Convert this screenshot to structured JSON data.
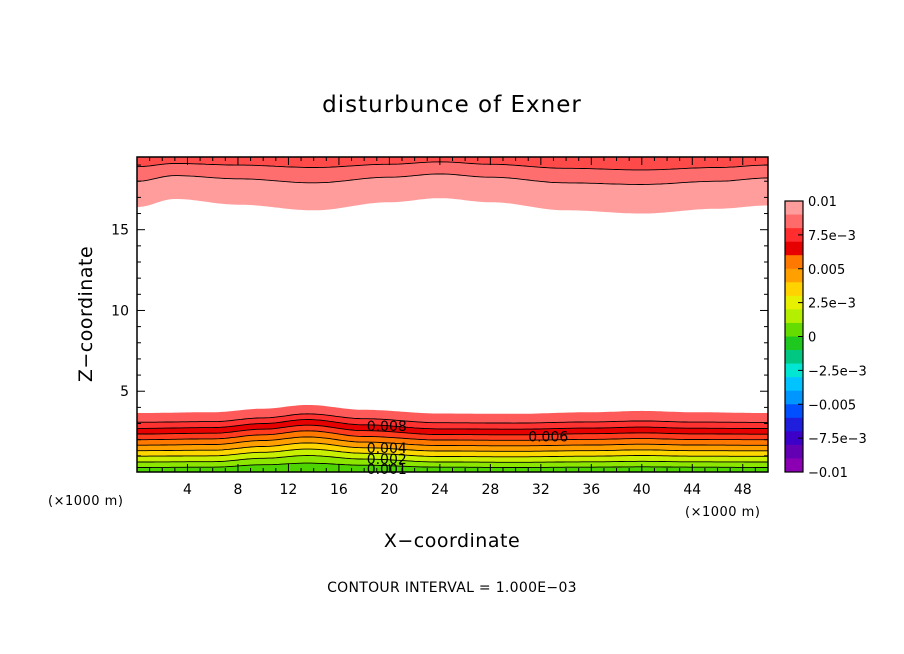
{
  "chart_data": {
    "type": "contour",
    "title": "disturbunce of Exner",
    "xlabel": "X−coordinate",
    "ylabel": "Z−coordinate",
    "x_unit_left": "(×1000 m)",
    "x_unit_right": "(×1000 m)",
    "xlim": [
      0,
      50
    ],
    "ylim": [
      0,
      19.5
    ],
    "x_ticks": [
      4,
      8,
      12,
      16,
      20,
      24,
      28,
      32,
      36,
      40,
      44,
      48
    ],
    "x_tick_labels": [
      "4",
      "8",
      "12",
      "16",
      "20",
      "24",
      "28",
      "32",
      "36",
      "40",
      "44",
      "48"
    ],
    "y_ticks": [
      5,
      10,
      15
    ],
    "y_tick_labels": [
      "5",
      "10",
      "15"
    ],
    "footnote": "CONTOUR INTERVAL = 1.000E−03",
    "contour_interval": 0.001,
    "contour_labels": [
      {
        "text": "0.008",
        "x": 18.2,
        "z": 2.85
      },
      {
        "text": "0.006",
        "x": 31.0,
        "z": 2.2
      },
      {
        "text": "0.004",
        "x": 18.2,
        "z": 1.5
      },
      {
        "text": "0.002",
        "x": 18.2,
        "z": 0.8
      },
      {
        "text": "0.001",
        "x": 18.2,
        "z": 0.2
      }
    ],
    "lower_layer": {
      "description_levels_z_at_x": {
        "x": [
          0,
          6,
          10,
          13.5,
          18,
          24,
          30,
          36,
          40,
          44,
          50
        ],
        "levels": [
          {
            "value": 0.001,
            "z": [
              0.28,
              0.3,
              0.45,
              0.55,
              0.42,
              0.3,
              0.28,
              0.3,
              0.32,
              0.3,
              0.28
            ]
          },
          {
            "value": 0.002,
            "z": [
              0.62,
              0.64,
              0.85,
              1.02,
              0.8,
              0.62,
              0.6,
              0.63,
              0.66,
              0.63,
              0.62
            ]
          },
          {
            "value": 0.003,
            "z": [
              0.98,
              1.0,
              1.22,
              1.42,
              1.16,
              0.96,
              0.94,
              0.98,
              1.02,
              0.98,
              0.97
            ]
          },
          {
            "value": 0.004,
            "z": [
              1.32,
              1.35,
              1.58,
              1.8,
              1.5,
              1.3,
              1.28,
              1.32,
              1.37,
              1.32,
              1.31
            ]
          },
          {
            "value": 0.005,
            "z": [
              1.66,
              1.7,
              1.95,
              2.17,
              1.85,
              1.64,
              1.62,
              1.67,
              1.72,
              1.67,
              1.65
            ]
          },
          {
            "value": 0.006,
            "z": [
              2.0,
              2.05,
              2.3,
              2.55,
              2.2,
              1.98,
              1.96,
              2.02,
              2.07,
              2.01,
              2.0
            ]
          },
          {
            "value": 0.007,
            "z": [
              2.35,
              2.4,
              2.65,
              2.9,
              2.56,
              2.32,
              2.3,
              2.37,
              2.42,
              2.36,
              2.34
            ]
          },
          {
            "value": 0.008,
            "z": [
              2.7,
              2.75,
              3.0,
              3.25,
              2.92,
              2.67,
              2.65,
              2.72,
              2.78,
              2.71,
              2.69
            ]
          },
          {
            "value": 0.009,
            "z": [
              3.08,
              3.12,
              3.35,
              3.6,
              3.3,
              3.05,
              3.03,
              3.1,
              3.16,
              3.09,
              3.07
            ]
          },
          {
            "value": 0.01,
            "z": [
              3.65,
              3.7,
              3.92,
              4.15,
              3.85,
              3.62,
              3.6,
              3.7,
              3.78,
              3.7,
              3.65
            ]
          }
        ]
      }
    },
    "upper_layer": {
      "x": [
        0,
        3,
        8,
        14,
        20,
        24,
        28,
        34,
        40,
        46,
        50
      ],
      "levels": [
        {
          "value": 0.01,
          "z": [
            16.4,
            16.9,
            16.55,
            16.2,
            16.7,
            16.95,
            16.7,
            16.2,
            16.0,
            16.3,
            16.5
          ]
        },
        {
          "value": 0.011,
          "z": [
            18.0,
            18.35,
            18.15,
            17.9,
            18.25,
            18.45,
            18.25,
            17.9,
            17.8,
            18.0,
            18.2
          ]
        },
        {
          "value": 0.012,
          "z": [
            18.9,
            19.1,
            19.0,
            18.85,
            19.05,
            19.2,
            19.05,
            18.8,
            18.7,
            18.85,
            19.0
          ]
        }
      ]
    },
    "colorbar": {
      "labels": [
        "0.01",
        "7.5e−3",
        "0.005",
        "2.5e−3",
        "0",
        "−2.5e−3",
        "−0.005",
        "−7.5e−3",
        "−0.01"
      ],
      "colors": [
        "#ff9c9c",
        "#ff6a6a",
        "#ff2d2d",
        "#e60000",
        "#ff7800",
        "#ffa000",
        "#ffd200",
        "#e6f000",
        "#b4ee00",
        "#64dc00",
        "#1fc81f",
        "#00c882",
        "#00e6d2",
        "#00c3ff",
        "#0096ff",
        "#0050ff",
        "#1e1edc",
        "#3c00c8",
        "#6400b4",
        "#8c00b4"
      ]
    },
    "colors": {
      "band_top_1": "#ff9c9c",
      "band_top_2": "#ff6e6e",
      "band_top_3": "#ff4a4a"
    }
  }
}
